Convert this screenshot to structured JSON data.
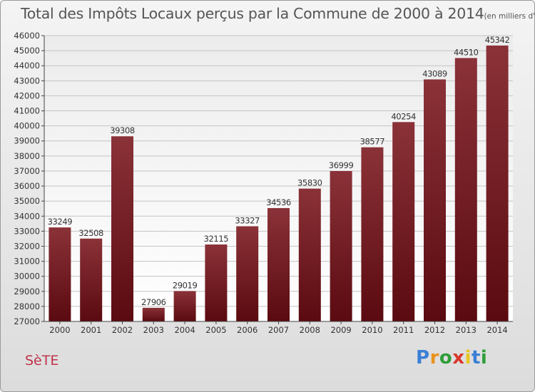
{
  "title": "Total des Impôts Locaux perçus par la Commune de 2000 à 2014",
  "title_unit": "(en milliers d'€)",
  "commune": "SèTE",
  "brand": {
    "letters": [
      "P",
      "r",
      "o",
      "x",
      "i",
      "t",
      "i"
    ],
    "colors": [
      "#3a7fd5",
      "#e8921e",
      "#2f9e3a",
      "#d8372b",
      "#e8c61e",
      "#3a7fd5",
      "#2f9e3a"
    ]
  },
  "colors": {
    "bar_top": "#8a3238",
    "bar_bottom": "#5a0a10",
    "plot_bg_top": "#ececec",
    "plot_bg_bottom": "#ffffff",
    "grid": "#c4c4c4",
    "text": "#333333"
  },
  "chart_data": {
    "type": "bar",
    "title": "Total des Impôts Locaux perçus par la Commune de 2000 à 2014",
    "xlabel": "",
    "ylabel": "",
    "categories": [
      "2000",
      "2001",
      "2002",
      "2003",
      "2004",
      "2005",
      "2006",
      "2007",
      "2008",
      "2009",
      "2010",
      "2011",
      "2012",
      "2013",
      "2014"
    ],
    "values": [
      33249,
      32508,
      39308,
      27906,
      29019,
      32115,
      33327,
      34536,
      35830,
      36999,
      38577,
      40254,
      43089,
      44510,
      45342
    ],
    "ylim": [
      27000,
      46000
    ],
    "yticks": [
      27000,
      28000,
      29000,
      30000,
      31000,
      32000,
      33000,
      34000,
      35000,
      36000,
      37000,
      38000,
      39000,
      40000,
      41000,
      42000,
      43000,
      44000,
      45000,
      46000
    ],
    "grid": true
  }
}
